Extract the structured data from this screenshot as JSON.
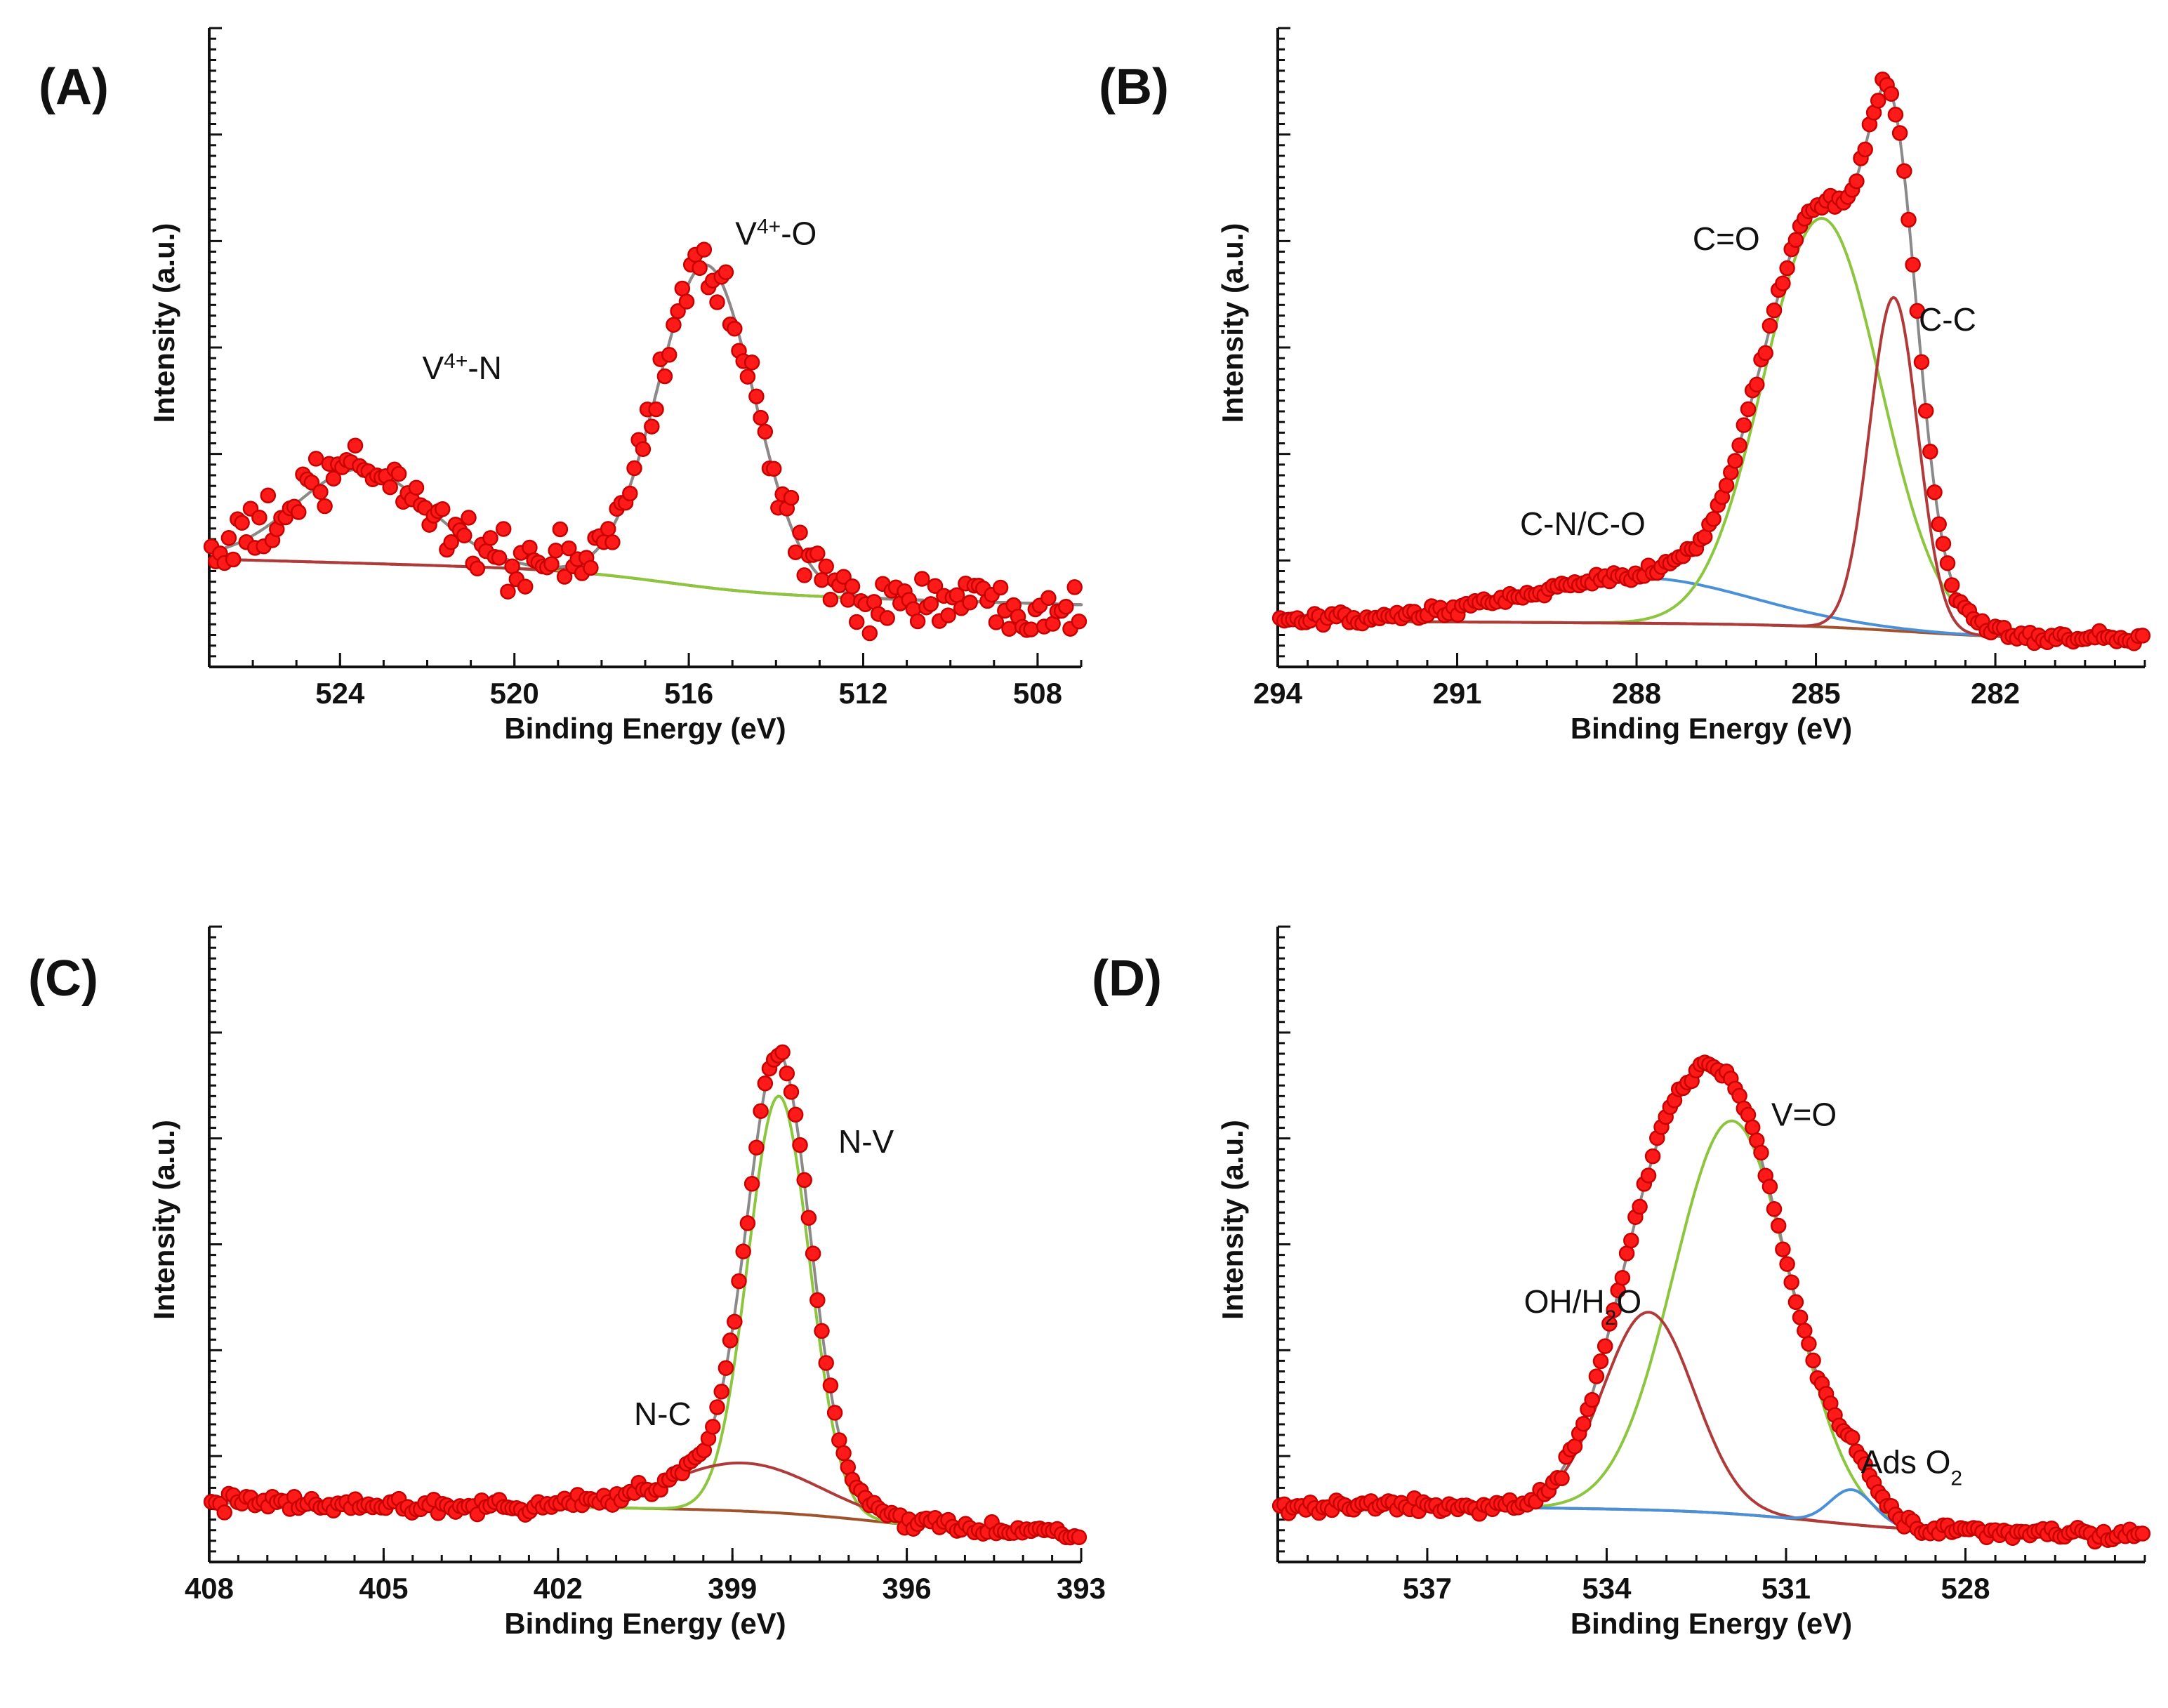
{
  "colors": {
    "points": "#ff1a1a",
    "envelope": "#8a8a8a",
    "background": "#a0522d",
    "green": "#8cc63f",
    "red": "#b03a3a",
    "blue": "#4a90d9"
  },
  "chart_data": [
    {
      "id": "A",
      "type": "scatter",
      "label": "(A)",
      "xlabel": "Binding Energy (eV)",
      "ylabel": "Intensity (a.u.)",
      "xlim": [
        527,
        507
      ],
      "ylim": [
        0,
        100
      ],
      "xticks": [
        524,
        520,
        516,
        512,
        508
      ],
      "xtick_labels": [
        "524",
        "520",
        "516",
        "512",
        "508"
      ],
      "baseline": {
        "left": 15.5,
        "right": 7,
        "step_center": 516.5,
        "step_width": 1.2,
        "step_drop": 4.0,
        "slope_drop": 4.5
      },
      "components": [
        {
          "name": "V4+-N",
          "color": "green",
          "center": 523.5,
          "height": 17.5,
          "fwhm": 3.6,
          "fill_to_baseline": true
        },
        {
          "name": "V4+-O",
          "color": "red",
          "center": 515.6,
          "height": 60,
          "fwhm": 2.6
        }
      ],
      "noise": 4.5,
      "n_points": 200,
      "annotations": [
        {
          "text": "V4+-N",
          "main": "V",
          "sup": "4+",
          "rest": "-N",
          "x": 521.2,
          "y": 49
        },
        {
          "text": "V4+-O",
          "main": "V",
          "sup": "4+",
          "rest": "-O",
          "x": 514.0,
          "y": 74
        }
      ]
    },
    {
      "id": "B",
      "type": "scatter",
      "label": "(B)",
      "xlabel": "Binding Energy (eV)",
      "ylabel": "Intensity (a.u.)",
      "xlim": [
        294,
        279.5
      ],
      "ylim": [
        0,
        100
      ],
      "xticks": [
        294,
        291,
        288,
        285,
        282
      ],
      "xtick_labels": [
        "294",
        "291",
        "288",
        "285",
        "282"
      ],
      "baseline": {
        "left": 4.0,
        "right": 0.5,
        "step_center": 283.5,
        "step_width": 1.0,
        "step_drop": 2.5,
        "slope_drop": 1.0
      },
      "components": [
        {
          "name": "C-N/C-O",
          "color": "blue",
          "center": 288.0,
          "height": 8.5,
          "fwhm": 4.4
        },
        {
          "name": "C=O",
          "color": "green",
          "center": 284.9,
          "height": 76,
          "fwhm": 2.3
        },
        {
          "name": "C-C",
          "color": "red",
          "center": 283.7,
          "height": 62,
          "fwhm": 0.95
        }
      ],
      "noise": 1.0,
      "n_points": 200,
      "annotations": [
        {
          "text": "C-N/C-O",
          "x": 288.9,
          "y": 20
        },
        {
          "text": "C=O",
          "x": 286.5,
          "y": 73
        },
        {
          "text": "C-C",
          "x": 282.8,
          "y": 58
        }
      ]
    },
    {
      "id": "C",
      "type": "scatter",
      "label": "(C)",
      "xlabel": "Binding Energy (eV)",
      "ylabel": "Intensity (a.u.)",
      "xlim": [
        408,
        393
      ],
      "ylim": [
        0,
        100
      ],
      "xticks": [
        408,
        405,
        402,
        399,
        396,
        393
      ],
      "xtick_labels": [
        "408",
        "405",
        "402",
        "399",
        "396",
        "393"
      ],
      "baseline": {
        "left": 6.5,
        "right": 0.5,
        "step_center": 396.5,
        "step_width": 1.0,
        "step_drop": 3.5,
        "slope_drop": 2.0
      },
      "components": [
        {
          "name": "N-V",
          "color": "green",
          "center": 398.2,
          "height": 78,
          "fwhm": 1.25
        },
        {
          "name": "N-C",
          "color": "red",
          "center": 398.8,
          "height": 9.0,
          "fwhm": 3.0
        }
      ],
      "noise": 1.2,
      "n_points": 200,
      "annotations": [
        {
          "text": "N-C",
          "x": 400.2,
          "y": 21
        },
        {
          "text": "N-V",
          "x": 396.7,
          "y": 72
        }
      ]
    },
    {
      "id": "D",
      "type": "scatter",
      "label": "(D)",
      "xlabel": "Binding Energy (eV)",
      "ylabel": "Intensity (a.u.)",
      "xlim": [
        539.5,
        525.0
      ],
      "ylim": [
        0,
        100
      ],
      "xticks": [
        537,
        534,
        531,
        528
      ],
      "xtick_labels": [
        "537",
        "534",
        "531",
        "528"
      ],
      "baseline": {
        "left": 6.0,
        "right": 0.5,
        "step_center": 530.5,
        "step_width": 1.0,
        "step_drop": 3.0,
        "slope_drop": 1.5
      },
      "components": [
        {
          "name": "V=O",
          "color": "green",
          "center": 531.9,
          "height": 73.5,
          "fwhm": 2.3
        },
        {
          "name": "OH/H2O",
          "color": "red",
          "center": 533.3,
          "height": 37,
          "fwhm": 1.8
        },
        {
          "name": "Ads O2",
          "color": "blue",
          "center": 529.9,
          "height": 6.5,
          "fwhm": 0.85
        }
      ],
      "noise": 1.0,
      "n_points": 200,
      "annotations": [
        {
          "text": "V=O",
          "x": 530.7,
          "y": 77
        },
        {
          "text": "OH/H2O",
          "main": "OH/H",
          "sub": "2",
          "rest": "O",
          "x": 534.4,
          "y": 42
        },
        {
          "text": "Ads O2",
          "main": "Ads O",
          "sub": "2",
          "rest": "",
          "x": 528.9,
          "y": 12
        }
      ]
    }
  ]
}
